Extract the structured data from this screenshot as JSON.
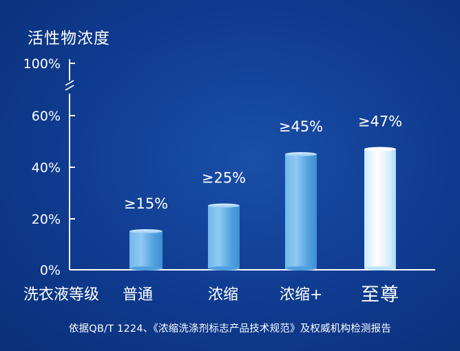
{
  "chart_data": {
    "type": "bar",
    "title": "活性物浓度",
    "xlabel": "洗衣液等级",
    "categories": [
      "普通",
      "浓缩",
      "浓缩+",
      "至尊"
    ],
    "values": [
      15,
      25,
      45,
      47
    ],
    "data_labels": [
      "≥15%",
      "≥25%",
      "≥45%",
      "≥47%"
    ],
    "ytick_labels": [
      "0%",
      "20%",
      "40%",
      "60%",
      "100%"
    ],
    "yticks": [
      0,
      20,
      40,
      60,
      100
    ],
    "axis_break": "between 60% and 100%",
    "grid": false,
    "legend": "none"
  },
  "footnote": "依据QB/T 1224、《浓缩洗涤剂标志产品技术规范》及权威机构检测报告",
  "colors": {
    "background": "#0f3b8f",
    "bar": "#5aa9e6",
    "bar_highlight": "#e8f6ff",
    "text": "#ffffff"
  }
}
